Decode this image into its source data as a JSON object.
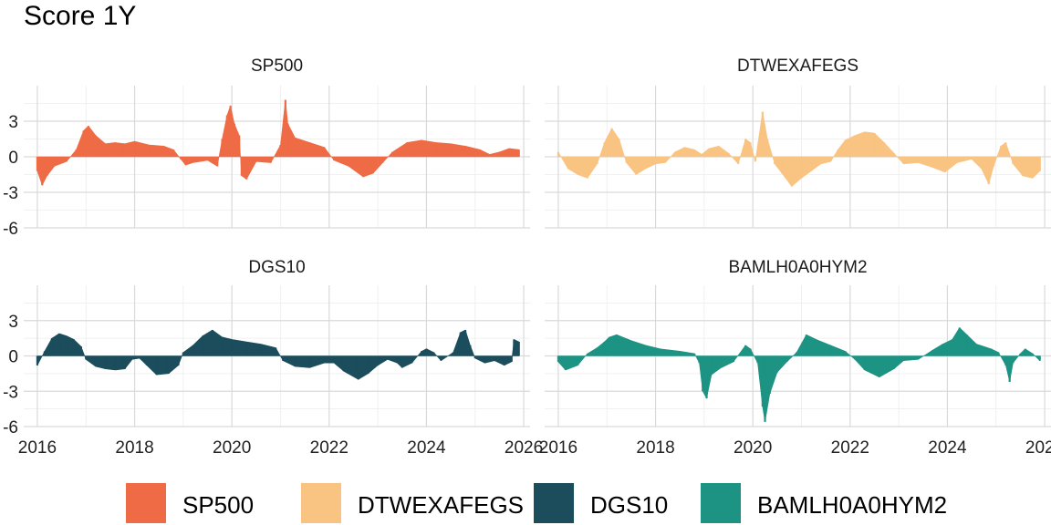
{
  "chart_data": {
    "type": "bar",
    "title": "Score 1Y",
    "layout": "2x2 facets",
    "x_range": [
      2016,
      2026
    ],
    "x_ticks": [
      "2016",
      "2018",
      "2020",
      "2022",
      "2024",
      "2026"
    ],
    "ylim": [
      -6,
      6
    ],
    "y_ticks": [
      "3",
      "0",
      "-3",
      "-6"
    ],
    "legend_position": "bottom",
    "facets": [
      {
        "name": "SP500",
        "color": "#EE6B45",
        "points": [
          [
            2016.0,
            -1.2
          ],
          [
            2016.1,
            -2.4
          ],
          [
            2016.2,
            -1.6
          ],
          [
            2016.35,
            -0.8
          ],
          [
            2016.6,
            -0.4
          ],
          [
            2016.8,
            0.6
          ],
          [
            2016.95,
            2.2
          ],
          [
            2017.05,
            2.6
          ],
          [
            2017.2,
            1.8
          ],
          [
            2017.4,
            1.1
          ],
          [
            2017.6,
            1.2
          ],
          [
            2017.8,
            1.1
          ],
          [
            2018.0,
            1.3
          ],
          [
            2018.3,
            1.0
          ],
          [
            2018.6,
            0.9
          ],
          [
            2018.8,
            0.6
          ],
          [
            2018.95,
            -0.2
          ],
          [
            2019.05,
            -0.7
          ],
          [
            2019.2,
            -0.5
          ],
          [
            2019.5,
            -0.3
          ],
          [
            2019.7,
            -0.8
          ],
          [
            2019.8,
            1.5
          ],
          [
            2019.9,
            3.5
          ],
          [
            2019.97,
            4.3
          ],
          [
            2020.05,
            2.8
          ],
          [
            2020.15,
            1.8
          ],
          [
            2020.2,
            -1.6
          ],
          [
            2020.3,
            -1.9
          ],
          [
            2020.5,
            -0.4
          ],
          [
            2020.8,
            -0.5
          ],
          [
            2021.0,
            1.0
          ],
          [
            2021.1,
            4.8
          ],
          [
            2021.15,
            2.8
          ],
          [
            2021.3,
            1.6
          ],
          [
            2021.6,
            1.2
          ],
          [
            2021.9,
            0.8
          ],
          [
            2022.1,
            -0.3
          ],
          [
            2022.4,
            -0.8
          ],
          [
            2022.7,
            -1.7
          ],
          [
            2022.9,
            -1.4
          ],
          [
            2023.1,
            -0.5
          ],
          [
            2023.3,
            0.4
          ],
          [
            2023.6,
            1.2
          ],
          [
            2023.9,
            1.4
          ],
          [
            2024.2,
            1.2
          ],
          [
            2024.5,
            1.1
          ],
          [
            2024.8,
            0.9
          ],
          [
            2025.1,
            0.6
          ],
          [
            2025.3,
            0.2
          ],
          [
            2025.5,
            0.4
          ],
          [
            2025.7,
            0.7
          ],
          [
            2025.9,
            0.6
          ]
        ]
      },
      {
        "name": "DTWEXAFEGS",
        "color": "#F9C382",
        "points": [
          [
            2016.0,
            0.4
          ],
          [
            2016.2,
            -1.0
          ],
          [
            2016.4,
            -1.5
          ],
          [
            2016.6,
            -1.8
          ],
          [
            2016.8,
            -0.6
          ],
          [
            2016.95,
            1.2
          ],
          [
            2017.1,
            2.4
          ],
          [
            2017.25,
            1.5
          ],
          [
            2017.4,
            -0.5
          ],
          [
            2017.6,
            -1.5
          ],
          [
            2017.8,
            -1.0
          ],
          [
            2018.0,
            -0.6
          ],
          [
            2018.2,
            -0.5
          ],
          [
            2018.4,
            0.4
          ],
          [
            2018.6,
            0.8
          ],
          [
            2018.8,
            0.6
          ],
          [
            2018.95,
            0.2
          ],
          [
            2019.1,
            0.7
          ],
          [
            2019.3,
            0.9
          ],
          [
            2019.5,
            0.3
          ],
          [
            2019.7,
            -0.6
          ],
          [
            2019.85,
            1.5
          ],
          [
            2019.95,
            1.2
          ],
          [
            2020.05,
            -0.4
          ],
          [
            2020.2,
            3.8
          ],
          [
            2020.3,
            1.5
          ],
          [
            2020.45,
            -0.6
          ],
          [
            2020.6,
            -1.4
          ],
          [
            2020.8,
            -2.5
          ],
          [
            2021.0,
            -1.8
          ],
          [
            2021.2,
            -1.2
          ],
          [
            2021.4,
            -0.6
          ],
          [
            2021.6,
            -0.4
          ],
          [
            2021.75,
            0.6
          ],
          [
            2021.9,
            1.4
          ],
          [
            2022.1,
            1.8
          ],
          [
            2022.3,
            2.1
          ],
          [
            2022.5,
            2.0
          ],
          [
            2022.7,
            1.2
          ],
          [
            2022.9,
            0.3
          ],
          [
            2023.1,
            -0.6
          ],
          [
            2023.4,
            -0.5
          ],
          [
            2023.7,
            -0.9
          ],
          [
            2023.95,
            -1.3
          ],
          [
            2024.2,
            -0.5
          ],
          [
            2024.5,
            -0.2
          ],
          [
            2024.7,
            -1.0
          ],
          [
            2024.85,
            -2.3
          ],
          [
            2024.95,
            -0.8
          ],
          [
            2025.1,
            0.9
          ],
          [
            2025.2,
            1.2
          ],
          [
            2025.35,
            -0.6
          ],
          [
            2025.55,
            -1.6
          ],
          [
            2025.75,
            -1.8
          ],
          [
            2025.9,
            -1.2
          ]
        ]
      },
      {
        "name": "DGS10",
        "color": "#1B4D5C",
        "points": [
          [
            2016.0,
            -0.8
          ],
          [
            2016.15,
            0.4
          ],
          [
            2016.3,
            1.5
          ],
          [
            2016.45,
            1.9
          ],
          [
            2016.6,
            1.7
          ],
          [
            2016.75,
            1.4
          ],
          [
            2016.9,
            0.8
          ],
          [
            2017.0,
            -0.3
          ],
          [
            2017.2,
            -0.9
          ],
          [
            2017.4,
            -1.1
          ],
          [
            2017.6,
            -1.2
          ],
          [
            2017.8,
            -1.1
          ],
          [
            2017.95,
            -0.3
          ],
          [
            2018.1,
            -0.2
          ],
          [
            2018.25,
            -0.8
          ],
          [
            2018.45,
            -1.6
          ],
          [
            2018.7,
            -1.5
          ],
          [
            2018.9,
            -0.8
          ],
          [
            2019.0,
            0.3
          ],
          [
            2019.2,
            0.9
          ],
          [
            2019.4,
            1.7
          ],
          [
            2019.6,
            2.2
          ],
          [
            2019.8,
            1.6
          ],
          [
            2020.0,
            1.4
          ],
          [
            2020.3,
            1.2
          ],
          [
            2020.6,
            1.0
          ],
          [
            2020.9,
            0.7
          ],
          [
            2021.05,
            -0.4
          ],
          [
            2021.3,
            -0.9
          ],
          [
            2021.6,
            -1.0
          ],
          [
            2021.9,
            -0.6
          ],
          [
            2022.1,
            -0.6
          ],
          [
            2022.3,
            -1.3
          ],
          [
            2022.6,
            -2.0
          ],
          [
            2022.8,
            -1.5
          ],
          [
            2023.0,
            -0.8
          ],
          [
            2023.2,
            -0.3
          ],
          [
            2023.4,
            -0.6
          ],
          [
            2023.5,
            -1.0
          ],
          [
            2023.7,
            -0.6
          ],
          [
            2023.9,
            0.4
          ],
          [
            2024.0,
            0.6
          ],
          [
            2024.15,
            0.3
          ],
          [
            2024.3,
            -0.4
          ],
          [
            2024.55,
            0.3
          ],
          [
            2024.7,
            2.0
          ],
          [
            2024.8,
            2.2
          ],
          [
            2024.9,
            0.9
          ],
          [
            2025.0,
            -0.2
          ],
          [
            2025.2,
            -0.6
          ],
          [
            2025.4,
            -0.4
          ],
          [
            2025.6,
            -0.8
          ],
          [
            2025.75,
            -0.5
          ],
          [
            2025.8,
            1.4
          ],
          [
            2025.9,
            1.2
          ]
        ]
      },
      {
        "name": "BAMLH0A0HYM2",
        "color": "#1C9383",
        "points": [
          [
            2016.0,
            -0.5
          ],
          [
            2016.15,
            -1.2
          ],
          [
            2016.4,
            -0.8
          ],
          [
            2016.6,
            0.2
          ],
          [
            2016.8,
            0.7
          ],
          [
            2016.95,
            1.2
          ],
          [
            2017.05,
            1.6
          ],
          [
            2017.2,
            1.8
          ],
          [
            2017.5,
            1.3
          ],
          [
            2017.8,
            0.9
          ],
          [
            2018.1,
            0.6
          ],
          [
            2018.5,
            0.4
          ],
          [
            2018.8,
            0.2
          ],
          [
            2018.9,
            -0.6
          ],
          [
            2018.97,
            -3.0
          ],
          [
            2019.05,
            -3.6
          ],
          [
            2019.15,
            -1.6
          ],
          [
            2019.35,
            -1.0
          ],
          [
            2019.6,
            -0.5
          ],
          [
            2019.85,
            0.9
          ],
          [
            2019.95,
            0.6
          ],
          [
            2020.1,
            -0.6
          ],
          [
            2020.2,
            -4.3
          ],
          [
            2020.25,
            -5.6
          ],
          [
            2020.35,
            -3.2
          ],
          [
            2020.5,
            -1.4
          ],
          [
            2020.7,
            -0.5
          ],
          [
            2020.9,
            0.3
          ],
          [
            2021.1,
            1.8
          ],
          [
            2021.3,
            1.4
          ],
          [
            2021.6,
            0.9
          ],
          [
            2021.9,
            0.4
          ],
          [
            2022.1,
            -0.3
          ],
          [
            2022.3,
            -1.2
          ],
          [
            2022.6,
            -1.8
          ],
          [
            2022.9,
            -1.1
          ],
          [
            2023.1,
            -0.4
          ],
          [
            2023.4,
            -0.3
          ],
          [
            2023.7,
            0.5
          ],
          [
            2023.9,
            1.0
          ],
          [
            2024.1,
            1.4
          ],
          [
            2024.25,
            2.4
          ],
          [
            2024.4,
            1.8
          ],
          [
            2024.6,
            1.0
          ],
          [
            2024.9,
            0.6
          ],
          [
            2025.05,
            0.3
          ],
          [
            2025.2,
            -0.8
          ],
          [
            2025.28,
            -2.2
          ],
          [
            2025.35,
            -0.6
          ],
          [
            2025.5,
            0.2
          ],
          [
            2025.6,
            0.6
          ],
          [
            2025.75,
            0.2
          ],
          [
            2025.9,
            -0.4
          ]
        ]
      }
    ]
  }
}
